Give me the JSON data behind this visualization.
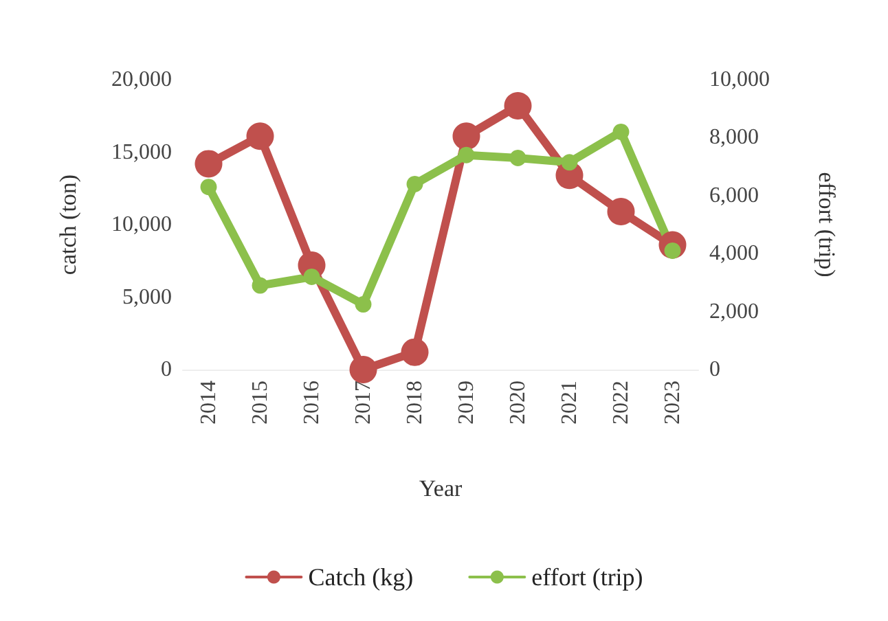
{
  "chart_data": {
    "type": "line",
    "xlabel": "Year",
    "ylabel": "catch (ton)",
    "y2label": "effort (trip)",
    "categories": [
      "2014",
      "2015",
      "2016",
      "2017",
      "2018",
      "2019",
      "2020",
      "2021",
      "2022",
      "2023"
    ],
    "series": [
      {
        "name": "Catch (kg)",
        "color": "#c0504d",
        "values": [
          14200,
          16100,
          7200,
          0,
          1200,
          16100,
          18200,
          13400,
          10900,
          8600
        ]
      },
      {
        "name": "effort (trip)",
        "color": "#8cc04b",
        "axis": "y2",
        "values": [
          6300,
          2900,
          3200,
          2250,
          6400,
          7400,
          7300,
          7150,
          8200,
          4100
        ]
      }
    ],
    "ylim": [
      0,
      20000
    ],
    "yticks": [
      0,
      {
        "value": 5000,
        "label": "5,000"
      },
      {
        "value": 10000,
        "label": "10,000"
      },
      {
        "value": 15000,
        "label": "15,000"
      },
      {
        "value": 20000,
        "label": "20,000"
      }
    ],
    "y2lim": [
      0,
      10000
    ],
    "y2ticks": [
      0,
      {
        "value": 2000,
        "label": "2,000"
      },
      {
        "value": 4000,
        "label": "4,000"
      },
      {
        "value": 6000,
        "label": "6,000"
      },
      {
        "value": 8000,
        "label": "8,000"
      },
      {
        "value": 10000,
        "label": "10,000"
      }
    ],
    "grid": false,
    "legend": "bottom",
    "marker": "circle",
    "line_style": "solid"
  }
}
